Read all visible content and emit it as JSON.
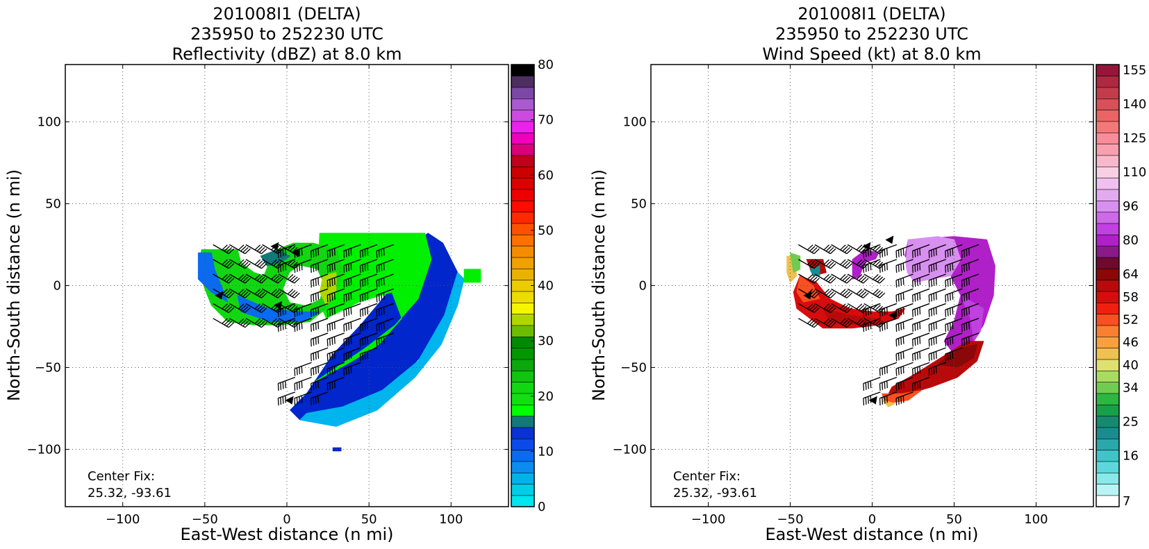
{
  "chart_data": [
    {
      "type": "heatmap",
      "title_lines": [
        "201008I1 (DELTA)",
        "235950 to 252230 UTC",
        "Reflectivity (dBZ) at 8.0 km"
      ],
      "xlabel": "East-West distance (n mi)",
      "ylabel": "North-South distance (n mi)",
      "xlim": [
        -135,
        135
      ],
      "ylim": [
        -135,
        135
      ],
      "x_ticks": [
        -100,
        -50,
        0,
        50,
        100
      ],
      "y_ticks": [
        -100,
        -50,
        0,
        50,
        100
      ],
      "x_tick_labels": [
        "−100",
        "−50",
        "0",
        "50",
        "100"
      ],
      "y_tick_labels": [
        "−100",
        "−50",
        "0",
        "50",
        "100"
      ],
      "grid": true,
      "annotation_lines": [
        "Center Fix:",
        "25.32, -93.61"
      ],
      "colorbar": {
        "min": 0,
        "max": 80,
        "ticks": [
          0,
          10,
          20,
          30,
          40,
          50,
          60,
          70,
          80
        ],
        "tick_labels": [
          "0",
          "10",
          "20",
          "30",
          "40",
          "50",
          "60",
          "70",
          "80"
        ],
        "colors": [
          "#00e5ee",
          "#00cde6",
          "#00b2e8",
          "#0a8cf0",
          "#0a6af0",
          "#0a4ae8",
          "#0a32d2",
          "#127878",
          "#00ff00",
          "#10e010",
          "#12d612",
          "#10c410",
          "#0aa80a",
          "#009800",
          "#008a00",
          "#6cbc00",
          "#b0d600",
          "#f5f500",
          "#ecdc00",
          "#eccc00",
          "#eab200",
          "#f0a000",
          "#f58c00",
          "#ff7000",
          "#ff5000",
          "#ff2a00",
          "#ff0c00",
          "#ee0000",
          "#dc0000",
          "#cc0000",
          "#c0001c",
          "#d8007c",
          "#ee00bc",
          "#ee20ee",
          "#cc4ae0",
          "#aa5ad0",
          "#7c48a6",
          "#4e2e60",
          "#000000"
        ]
      },
      "field_colors": [
        "#0026cc",
        "#00b4ee",
        "#0a6af0",
        "#00f000",
        "#12d612",
        "#127878",
        "#b0d600"
      ],
      "barb_color": "#000000"
    },
    {
      "type": "heatmap",
      "title_lines": [
        "201008I1 (DELTA)",
        "235950 to 252230 UTC",
        "Wind Speed (kt) at 8.0 km"
      ],
      "xlabel": "East-West distance (n mi)",
      "ylabel": "North-South distance (n mi)",
      "xlim": [
        -135,
        135
      ],
      "ylim": [
        -135,
        135
      ],
      "x_ticks": [
        -100,
        -50,
        0,
        50,
        100
      ],
      "y_ticks": [
        -100,
        -50,
        0,
        50,
        100
      ],
      "x_tick_labels": [
        "−100",
        "−50",
        "0",
        "50",
        "100"
      ],
      "y_tick_labels": [
        "−100",
        "−50",
        "0",
        "50",
        "100"
      ],
      "grid": true,
      "annotation_lines": [
        "Center Fix:",
        "25.32, -93.61"
      ],
      "colorbar": {
        "tick_labels": [
          "7",
          "16",
          "25",
          "34",
          "40",
          "46",
          "52",
          "58",
          "64",
          "80",
          "96",
          "110",
          "125",
          "140",
          "155"
        ],
        "colors": [
          "#ffffff",
          "#b8f4f4",
          "#86eaea",
          "#5cd8dc",
          "#40c4c8",
          "#2aa8ac",
          "#1a8c90",
          "#158a70",
          "#18a048",
          "#2cb840",
          "#70cc50",
          "#a8dc60",
          "#e0e070",
          "#f0c050",
          "#f8a040",
          "#f88030",
          "#f85020",
          "#f02010",
          "#d80c0c",
          "#b80a0a",
          "#8a0808",
          "#6e0a2e",
          "#8a1a8a",
          "#b020c8",
          "#c040e0",
          "#cc6ae8",
          "#d890f0",
          "#e4aaf0",
          "#f0c0f0",
          "#f8d0e4",
          "#f8b8cc",
          "#f8a0b0",
          "#f88c98",
          "#f47878",
          "#ea6464",
          "#d85058",
          "#c43c4c",
          "#ae2842",
          "#96163a"
        ],
        "tick_boundaries": [
          0.5,
          4.5,
          7.5,
          10.5,
          12.5,
          14.5,
          16.5,
          18.5,
          20.5,
          23.5,
          26.5,
          29.5,
          32.5,
          35.5,
          38.5
        ]
      },
      "field_colors": [
        "#b020c8",
        "#d890f0",
        "#c040e0",
        "#b80a0a",
        "#d80c0c",
        "#8a0808",
        "#f85020",
        "#f0c050",
        "#70cc50",
        "#1a8c90"
      ],
      "barb_color": "#000000"
    }
  ]
}
